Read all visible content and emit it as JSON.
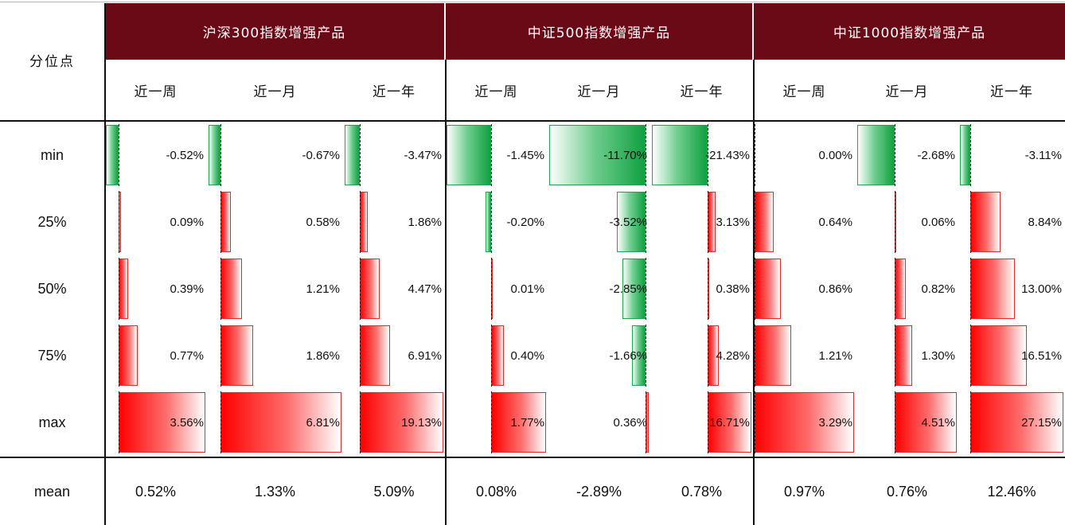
{
  "table": {
    "corner_label": "分位点",
    "groups": [
      "沪深300指数增强产品",
      "中证500指数增强产品",
      "中证1000指数增强产品"
    ],
    "periods": [
      "近一周",
      "近一月",
      "近一年"
    ],
    "rows": [
      "min",
      "25%",
      "50%",
      "75%",
      "max"
    ],
    "mean_label": "mean",
    "colors": {
      "header_bg": "#6b0a17",
      "positive": "#ff0000",
      "negative": "#10a040"
    },
    "columns": [
      {
        "group": "沪深300指数增强产品",
        "period": "近一周",
        "values": [
          -0.52,
          0.09,
          0.39,
          0.77,
          3.56
        ],
        "labels": [
          "-0.52%",
          "0.09%",
          "0.39%",
          "0.77%",
          "3.56%"
        ],
        "mean": "0.52%"
      },
      {
        "group": "沪深300指数增强产品",
        "period": "近一月",
        "values": [
          -0.67,
          0.58,
          1.21,
          1.86,
          6.81
        ],
        "labels": [
          "-0.67%",
          "0.58%",
          "1.21%",
          "1.86%",
          "6.81%"
        ],
        "mean": "1.33%"
      },
      {
        "group": "沪深300指数增强产品",
        "period": "近一年",
        "values": [
          -3.47,
          1.86,
          4.47,
          6.91,
          19.13
        ],
        "labels": [
          "-3.47%",
          "1.86%",
          "4.47%",
          "6.91%",
          "19.13%"
        ],
        "mean": "5.09%"
      },
      {
        "group": "中证500指数增强产品",
        "period": "近一周",
        "values": [
          -1.45,
          -0.2,
          0.01,
          0.4,
          1.77
        ],
        "labels": [
          "-1.45%",
          "-0.20%",
          "0.01%",
          "0.40%",
          "1.77%"
        ],
        "mean": "0.08%"
      },
      {
        "group": "中证500指数增强产品",
        "period": "近一月",
        "values": [
          -11.7,
          -3.52,
          -2.85,
          -1.66,
          0.36
        ],
        "labels": [
          "-11.70%",
          "-3.52%",
          "-2.85%",
          "-1.66%",
          "0.36%"
        ],
        "mean": "-2.89%"
      },
      {
        "group": "中证500指数增强产品",
        "period": "近一年",
        "values": [
          -21.43,
          3.13,
          0.38,
          4.28,
          16.71
        ],
        "labels": [
          "-21.43%",
          "3.13%",
          "0.38%",
          "4.28%",
          "16.71%"
        ],
        "mean": "0.78%"
      },
      {
        "group": "中证1000指数增强产品",
        "period": "近一周",
        "values": [
          0.0,
          0.64,
          0.86,
          1.21,
          3.29
        ],
        "labels": [
          "0.00%",
          "0.64%",
          "0.86%",
          "1.21%",
          "3.29%"
        ],
        "mean": "0.97%"
      },
      {
        "group": "中证1000指数增强产品",
        "period": "近一月",
        "values": [
          -2.68,
          0.06,
          0.82,
          1.3,
          4.51
        ],
        "labels": [
          "-2.68%",
          "0.06%",
          "0.82%",
          "1.30%",
          "4.51%"
        ],
        "mean": "0.76%"
      },
      {
        "group": "中证1000指数增强产品",
        "period": "近一年",
        "values": [
          -3.11,
          8.84,
          13.0,
          16.51,
          27.15
        ],
        "labels": [
          "-3.11%",
          "8.84%",
          "13.00%",
          "16.51%",
          "27.15%"
        ],
        "mean": "12.46%"
      }
    ]
  }
}
